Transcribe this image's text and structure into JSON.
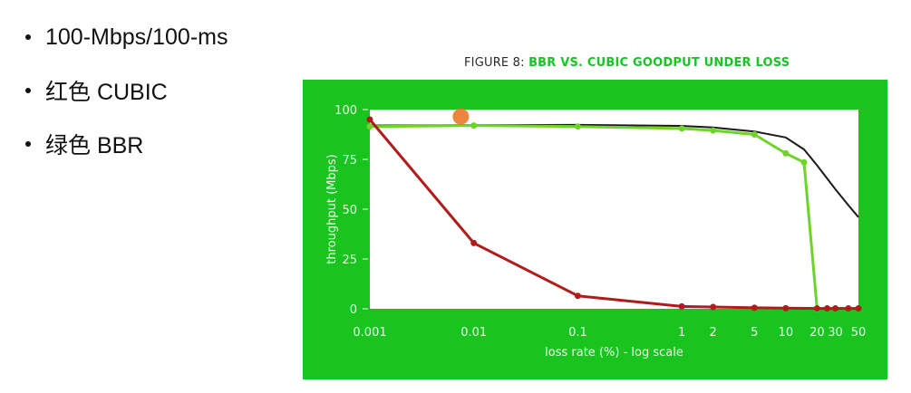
{
  "bullets": [
    {
      "text": "100-Mbps/100-ms"
    },
    {
      "text": "红色 CUBIC"
    },
    {
      "text": "绿色 BBR"
    }
  ],
  "figure": {
    "prefix": "FIGURE 8: ",
    "title": "BBR VS. CUBIC GOODPUT UNDER LOSS"
  },
  "colors": {
    "panel": "#19c41f",
    "plot_bg": "#ffffff",
    "cubic": "#b01c1c",
    "bbr": "#6fd42a",
    "ideal": "#1a1a1a",
    "cursor": "#e8792a"
  },
  "chart_data": {
    "type": "line",
    "title": "BBR VS. CUBIC GOODPUT UNDER LOSS",
    "xlabel": "loss rate (%) - log scale",
    "ylabel": "throughput (Mbps)",
    "x_scale": "log",
    "xlim": [
      0.001,
      50
    ],
    "ylim": [
      0,
      100
    ],
    "x_ticks": [
      0.001,
      0.01,
      0.1,
      1,
      2,
      5,
      10,
      20,
      30,
      50
    ],
    "x_tick_labels": [
      "0.001",
      "0.01",
      "0.1",
      "1",
      "2",
      "5",
      "10",
      "20",
      "30",
      "50"
    ],
    "y_ticks": [
      0,
      25,
      50,
      75,
      100
    ],
    "y_tick_labels": [
      "0",
      "25",
      "50",
      "75",
      "100"
    ],
    "grid": false,
    "series": [
      {
        "color": "#1a1a1a",
        "markers": false,
        "x": [
          0.001,
          0.01,
          0.1,
          1,
          2,
          5,
          10,
          15,
          20,
          30,
          40,
          50
        ],
        "y": [
          92,
          92.2,
          92.3,
          91.8,
          91,
          89,
          86,
          80,
          72,
          60,
          52,
          46
        ]
      },
      {
        "color": "#6fd42a",
        "markers": true,
        "x": [
          0.001,
          0.01,
          0.1,
          1,
          2,
          5,
          10,
          15,
          20
        ],
        "y": [
          91.5,
          92,
          91.5,
          90.5,
          89.5,
          87.5,
          78,
          73.5,
          0
        ]
      },
      {
        "color": "#b01c1c",
        "markers": true,
        "x": [
          0.001,
          0.01,
          0.1,
          1,
          2,
          5,
          10,
          20,
          25,
          30,
          40,
          50
        ],
        "y": [
          95,
          33,
          6.5,
          1.2,
          0.9,
          0.5,
          0.3,
          0.2,
          0.2,
          0.2,
          0.2,
          0.2
        ]
      }
    ],
    "cursor_marker": {
      "x": 0.0075,
      "y": 96.5
    }
  }
}
